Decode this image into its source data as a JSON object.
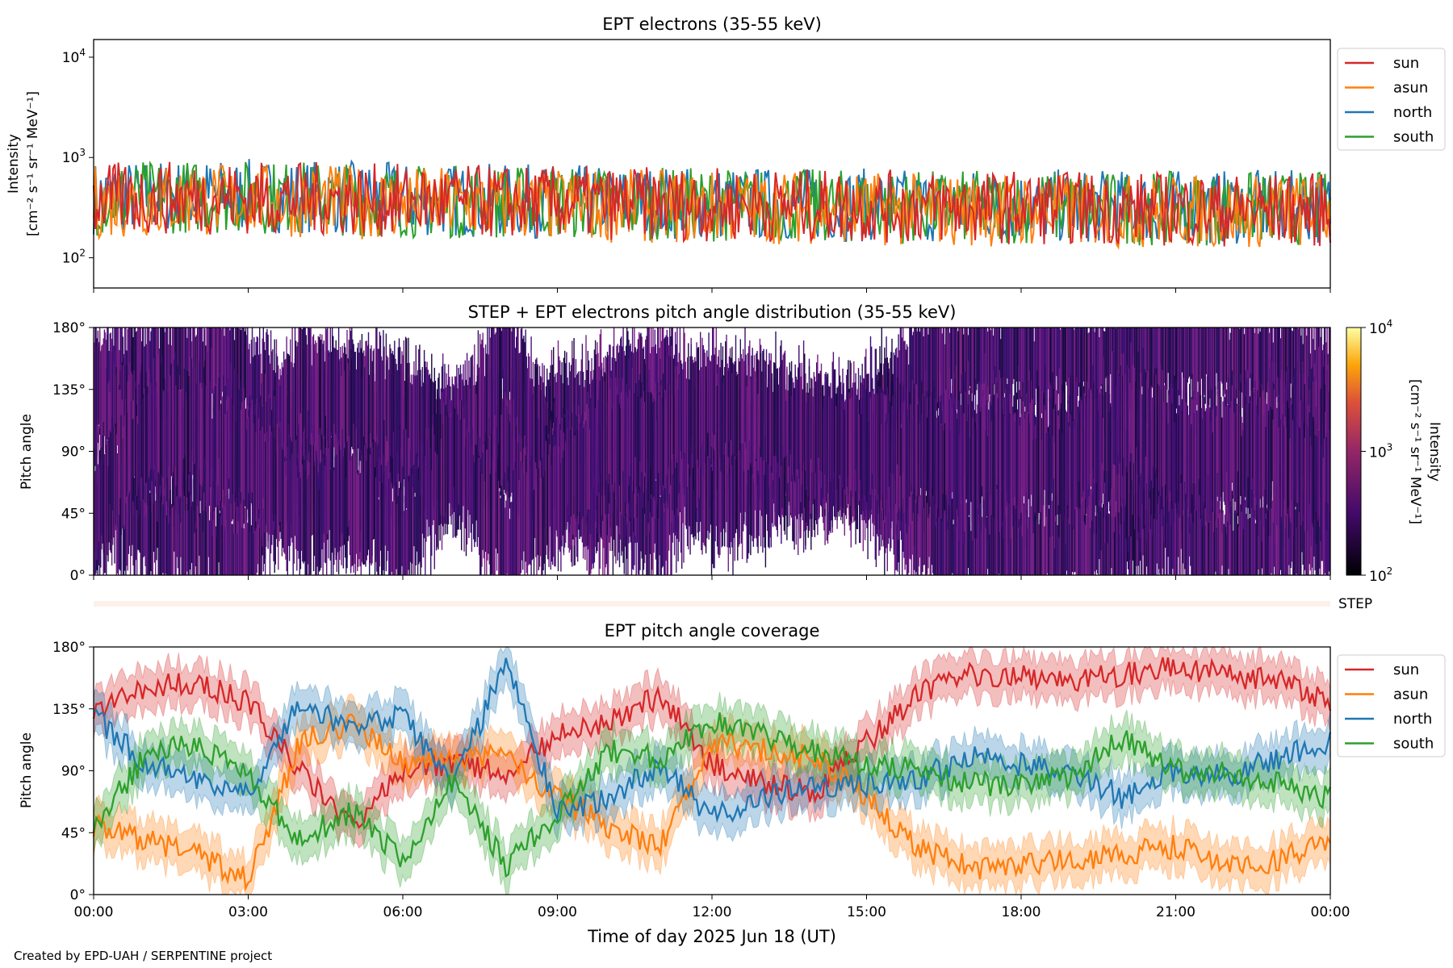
{
  "footer": "Created by EPD-UAH / SERPENTINE project",
  "step_label": "STEP",
  "xlabel": "Time of day 2025 Jun 18 (UT)",
  "xticks": [
    "00:00",
    "03:00",
    "06:00",
    "09:00",
    "12:00",
    "15:00",
    "18:00",
    "21:00",
    "00:00"
  ],
  "colors": {
    "sun": "#d62728",
    "asun": "#ff7f0e",
    "north": "#1f77b4",
    "south": "#2ca02c"
  },
  "chart_data": [
    {
      "type": "line",
      "title": "EPT electrons (35-55 keV)",
      "ylabel": "Intensity",
      "yunits": "[cm⁻² s⁻¹ sr⁻¹ MeV⁻¹]",
      "yscale": "log",
      "ylim": [
        50,
        15000
      ],
      "yticks": [
        {
          "base": "10",
          "exp": "2",
          "v": 100
        },
        {
          "base": "10",
          "exp": "3",
          "v": 1000
        },
        {
          "base": "10",
          "exp": "4",
          "v": 10000
        }
      ],
      "legend": "outside-top-right",
      "x_hours": [
        0,
        2,
        4,
        6,
        8,
        10,
        12,
        14,
        16,
        18,
        20,
        22,
        24
      ],
      "series": [
        {
          "name": "sun",
          "values": [
            380,
            400,
            390,
            370,
            360,
            350,
            340,
            330,
            320,
            320,
            310,
            300,
            300
          ]
        },
        {
          "name": "asun",
          "values": [
            360,
            380,
            370,
            350,
            340,
            330,
            320,
            320,
            300,
            300,
            290,
            290,
            290
          ]
        },
        {
          "name": "north",
          "values": [
            400,
            420,
            410,
            380,
            370,
            360,
            350,
            340,
            330,
            330,
            320,
            320,
            320
          ]
        },
        {
          "name": "south",
          "values": [
            390,
            410,
            400,
            370,
            360,
            350,
            340,
            330,
            320,
            320,
            310,
            310,
            310
          ]
        }
      ]
    },
    {
      "type": "heatmap",
      "title": "STEP + EPT electrons pitch angle distribution (35-55 keV)",
      "ylabel": "Pitch angle",
      "ylim": [
        0,
        180
      ],
      "yticks": [
        "0°",
        "45°",
        "90°",
        "135°",
        "180°"
      ],
      "colorbar": {
        "label": "Intensity",
        "units": "[cm⁻² s⁻¹ sr⁻¹ MeV⁻¹]",
        "scale": "log",
        "range": [
          100,
          10000
        ],
        "ticks": [
          {
            "base": "10",
            "exp": "2"
          },
          {
            "base": "10",
            "exp": "3"
          },
          {
            "base": "10",
            "exp": "4"
          }
        ]
      }
    },
    {
      "type": "area",
      "title": "EPT pitch angle coverage",
      "ylabel": "Pitch angle",
      "ylim": [
        0,
        180
      ],
      "band_halfwidth_deg": 15,
      "yticks": [
        "0°",
        "45°",
        "90°",
        "135°",
        "180°"
      ],
      "legend": "outside-top-right",
      "x_hours": [
        0,
        1,
        2,
        3,
        4,
        5,
        6,
        7,
        8,
        9,
        10,
        11,
        12,
        13,
        14,
        15,
        16,
        17,
        18,
        19,
        20,
        21,
        22,
        23,
        24
      ],
      "series": [
        {
          "name": "sun",
          "values": [
            135,
            150,
            155,
            140,
            90,
            50,
            90,
            95,
            90,
            115,
            125,
            145,
            95,
            80,
            75,
            110,
            145,
            160,
            160,
            155,
            160,
            165,
            160,
            155,
            140
          ]
        },
        {
          "name": "asun",
          "values": [
            50,
            40,
            30,
            10,
            110,
            125,
            95,
            100,
            100,
            70,
            50,
            35,
            110,
            105,
            100,
            70,
            35,
            20,
            20,
            25,
            30,
            35,
            20,
            25,
            40
          ]
        },
        {
          "name": "north",
          "values": [
            130,
            95,
            85,
            75,
            140,
            120,
            130,
            80,
            170,
            60,
            70,
            95,
            55,
            70,
            80,
            80,
            85,
            100,
            95,
            90,
            70,
            90,
            85,
            100,
            110
          ]
        },
        {
          "name": "south",
          "values": [
            50,
            100,
            110,
            85,
            40,
            60,
            25,
            85,
            20,
            60,
            105,
            100,
            125,
            115,
            105,
            95,
            90,
            80,
            80,
            85,
            115,
            90,
            90,
            80,
            70
          ]
        }
      ]
    }
  ]
}
